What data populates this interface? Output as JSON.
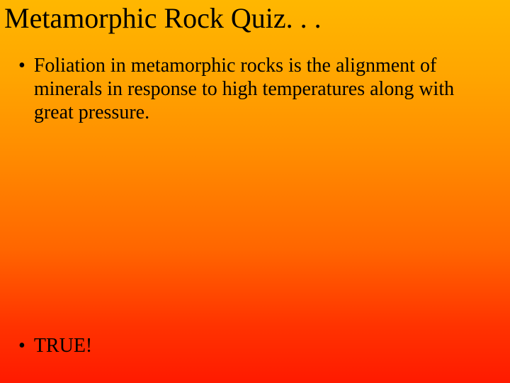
{
  "slide": {
    "title": "Metamorphic Rock Quiz. . .",
    "question_bullet": "•",
    "question_text": "Foliation in metamorphic rocks is the alignment of minerals in response to high temperatures along with great pressure.",
    "answer_bullet": "•",
    "answer_text": "TRUE!",
    "background_gradient_top": "#ffb700",
    "background_gradient_bottom": "#ff1a00",
    "text_color": "#000000",
    "title_fontsize": 40,
    "body_fontsize": 28,
    "font_family": "Times New Roman"
  }
}
